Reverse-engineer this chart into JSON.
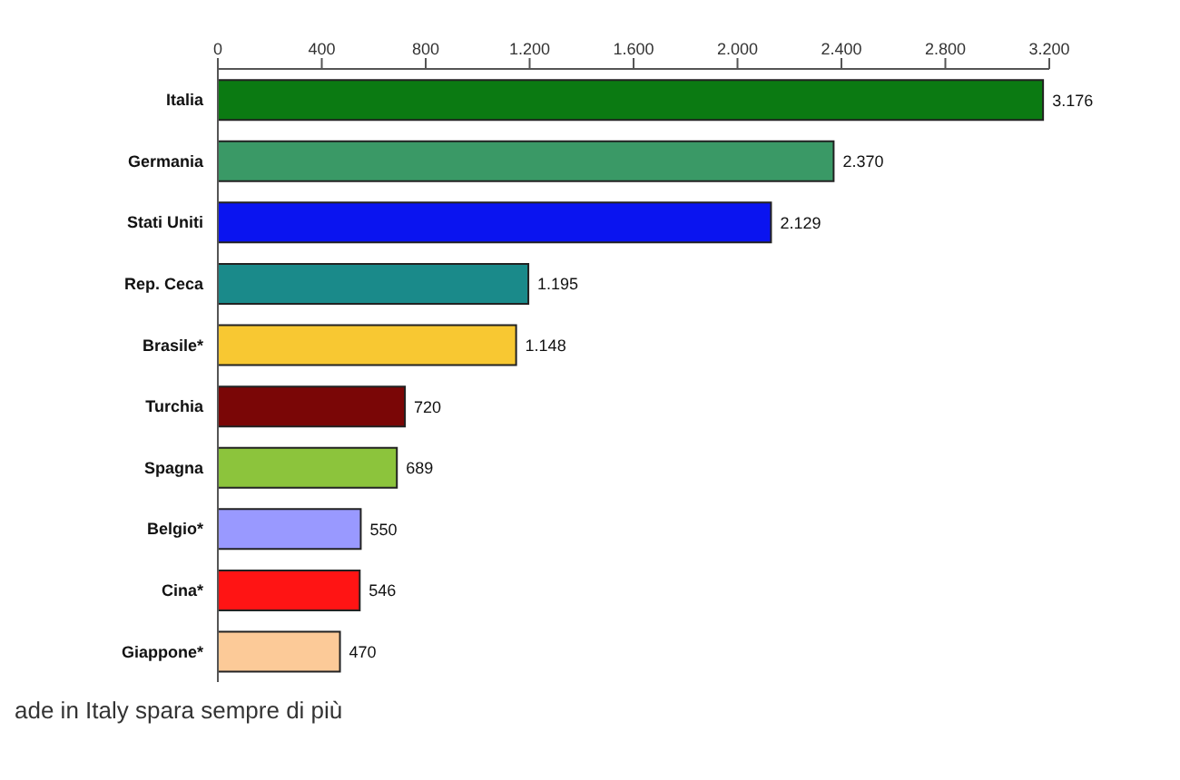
{
  "chart_data": {
    "type": "bar",
    "orientation": "horizontal",
    "categories": [
      "Italia",
      "Germania",
      "Stati Uniti",
      "Rep. Ceca",
      "Brasile*",
      "Turchia",
      "Spagna",
      "Belgio*",
      "Cina*",
      "Giappone*"
    ],
    "values": [
      3176,
      2370,
      2129,
      1195,
      1148,
      720,
      689,
      550,
      546,
      470
    ],
    "value_labels": [
      "3.176",
      "2.370",
      "2.129",
      "1.195",
      "1.148",
      "720",
      "689",
      "550",
      "546",
      "470"
    ],
    "colors": [
      "#0b7a12",
      "#3a9966",
      "#0a14f0",
      "#1a8a8a",
      "#f8c832",
      "#7a0606",
      "#8cc43c",
      "#9999ff",
      "#ff1414",
      "#fcca98"
    ],
    "xlim": [
      0,
      3200
    ],
    "xticks": [
      0,
      400,
      800,
      {
        "value": 1200,
        "label": "1.200"
      },
      {
        "value": 1600,
        "label": "1.600"
      },
      {
        "value": 2000,
        "label": "2.000"
      },
      {
        "value": 2400,
        "label": "2.400"
      },
      {
        "value": 2800,
        "label": "2.800"
      },
      {
        "value": 3200,
        "label": "3.200"
      }
    ],
    "grid": false,
    "legend": false,
    "annotations": [
      "ade in Italy spara sempre di più"
    ]
  }
}
